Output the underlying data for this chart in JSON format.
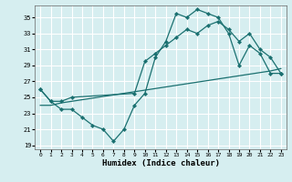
{
  "xlabel": "Humidex (Indice chaleur)",
  "bg_color": "#d6eef0",
  "grid_color": "#ffffff",
  "line_color": "#1a7070",
  "xlim": [
    -0.5,
    23.5
  ],
  "ylim": [
    18.5,
    36.5
  ],
  "xticks": [
    0,
    1,
    2,
    3,
    4,
    5,
    6,
    7,
    8,
    9,
    10,
    11,
    12,
    13,
    14,
    15,
    16,
    17,
    18,
    19,
    20,
    21,
    22,
    23
  ],
  "yticks": [
    19,
    21,
    23,
    25,
    27,
    29,
    31,
    33,
    35
  ],
  "line1_x": [
    0,
    1,
    2,
    3,
    4,
    5,
    6,
    7,
    8,
    9,
    10,
    11,
    12,
    13,
    14,
    15,
    16,
    17,
    18,
    19,
    20,
    21,
    22,
    23
  ],
  "line1_y": [
    26,
    24.5,
    23.5,
    23.5,
    22.5,
    21.5,
    21,
    19.5,
    21,
    24,
    25.5,
    30,
    32,
    35.5,
    35,
    36,
    35.5,
    35,
    33,
    29,
    31.5,
    30.5,
    28,
    28
  ],
  "line2_x": [
    0,
    1,
    2,
    3,
    9,
    10,
    11,
    12,
    13,
    14,
    15,
    16,
    17,
    18,
    19,
    20,
    21,
    22,
    23
  ],
  "line2_y": [
    26,
    24.5,
    24.5,
    25,
    25.5,
    29.5,
    30.5,
    31.5,
    32.5,
    33.5,
    33,
    34,
    34.5,
    33.5,
    32,
    33,
    31,
    30,
    28
  ],
  "line3_x": [
    0,
    1,
    2,
    3,
    4,
    5,
    6,
    7,
    8,
    9,
    10,
    11,
    12,
    13,
    14,
    15,
    16,
    17,
    18,
    19,
    20,
    21,
    22,
    23
  ],
  "line3_y": [
    24.0,
    24.0,
    24.3,
    24.5,
    24.7,
    24.9,
    25.1,
    25.3,
    25.5,
    25.7,
    25.9,
    26.1,
    26.3,
    26.5,
    26.7,
    26.9,
    27.1,
    27.3,
    27.5,
    27.7,
    27.9,
    28.1,
    28.3,
    28.6
  ]
}
